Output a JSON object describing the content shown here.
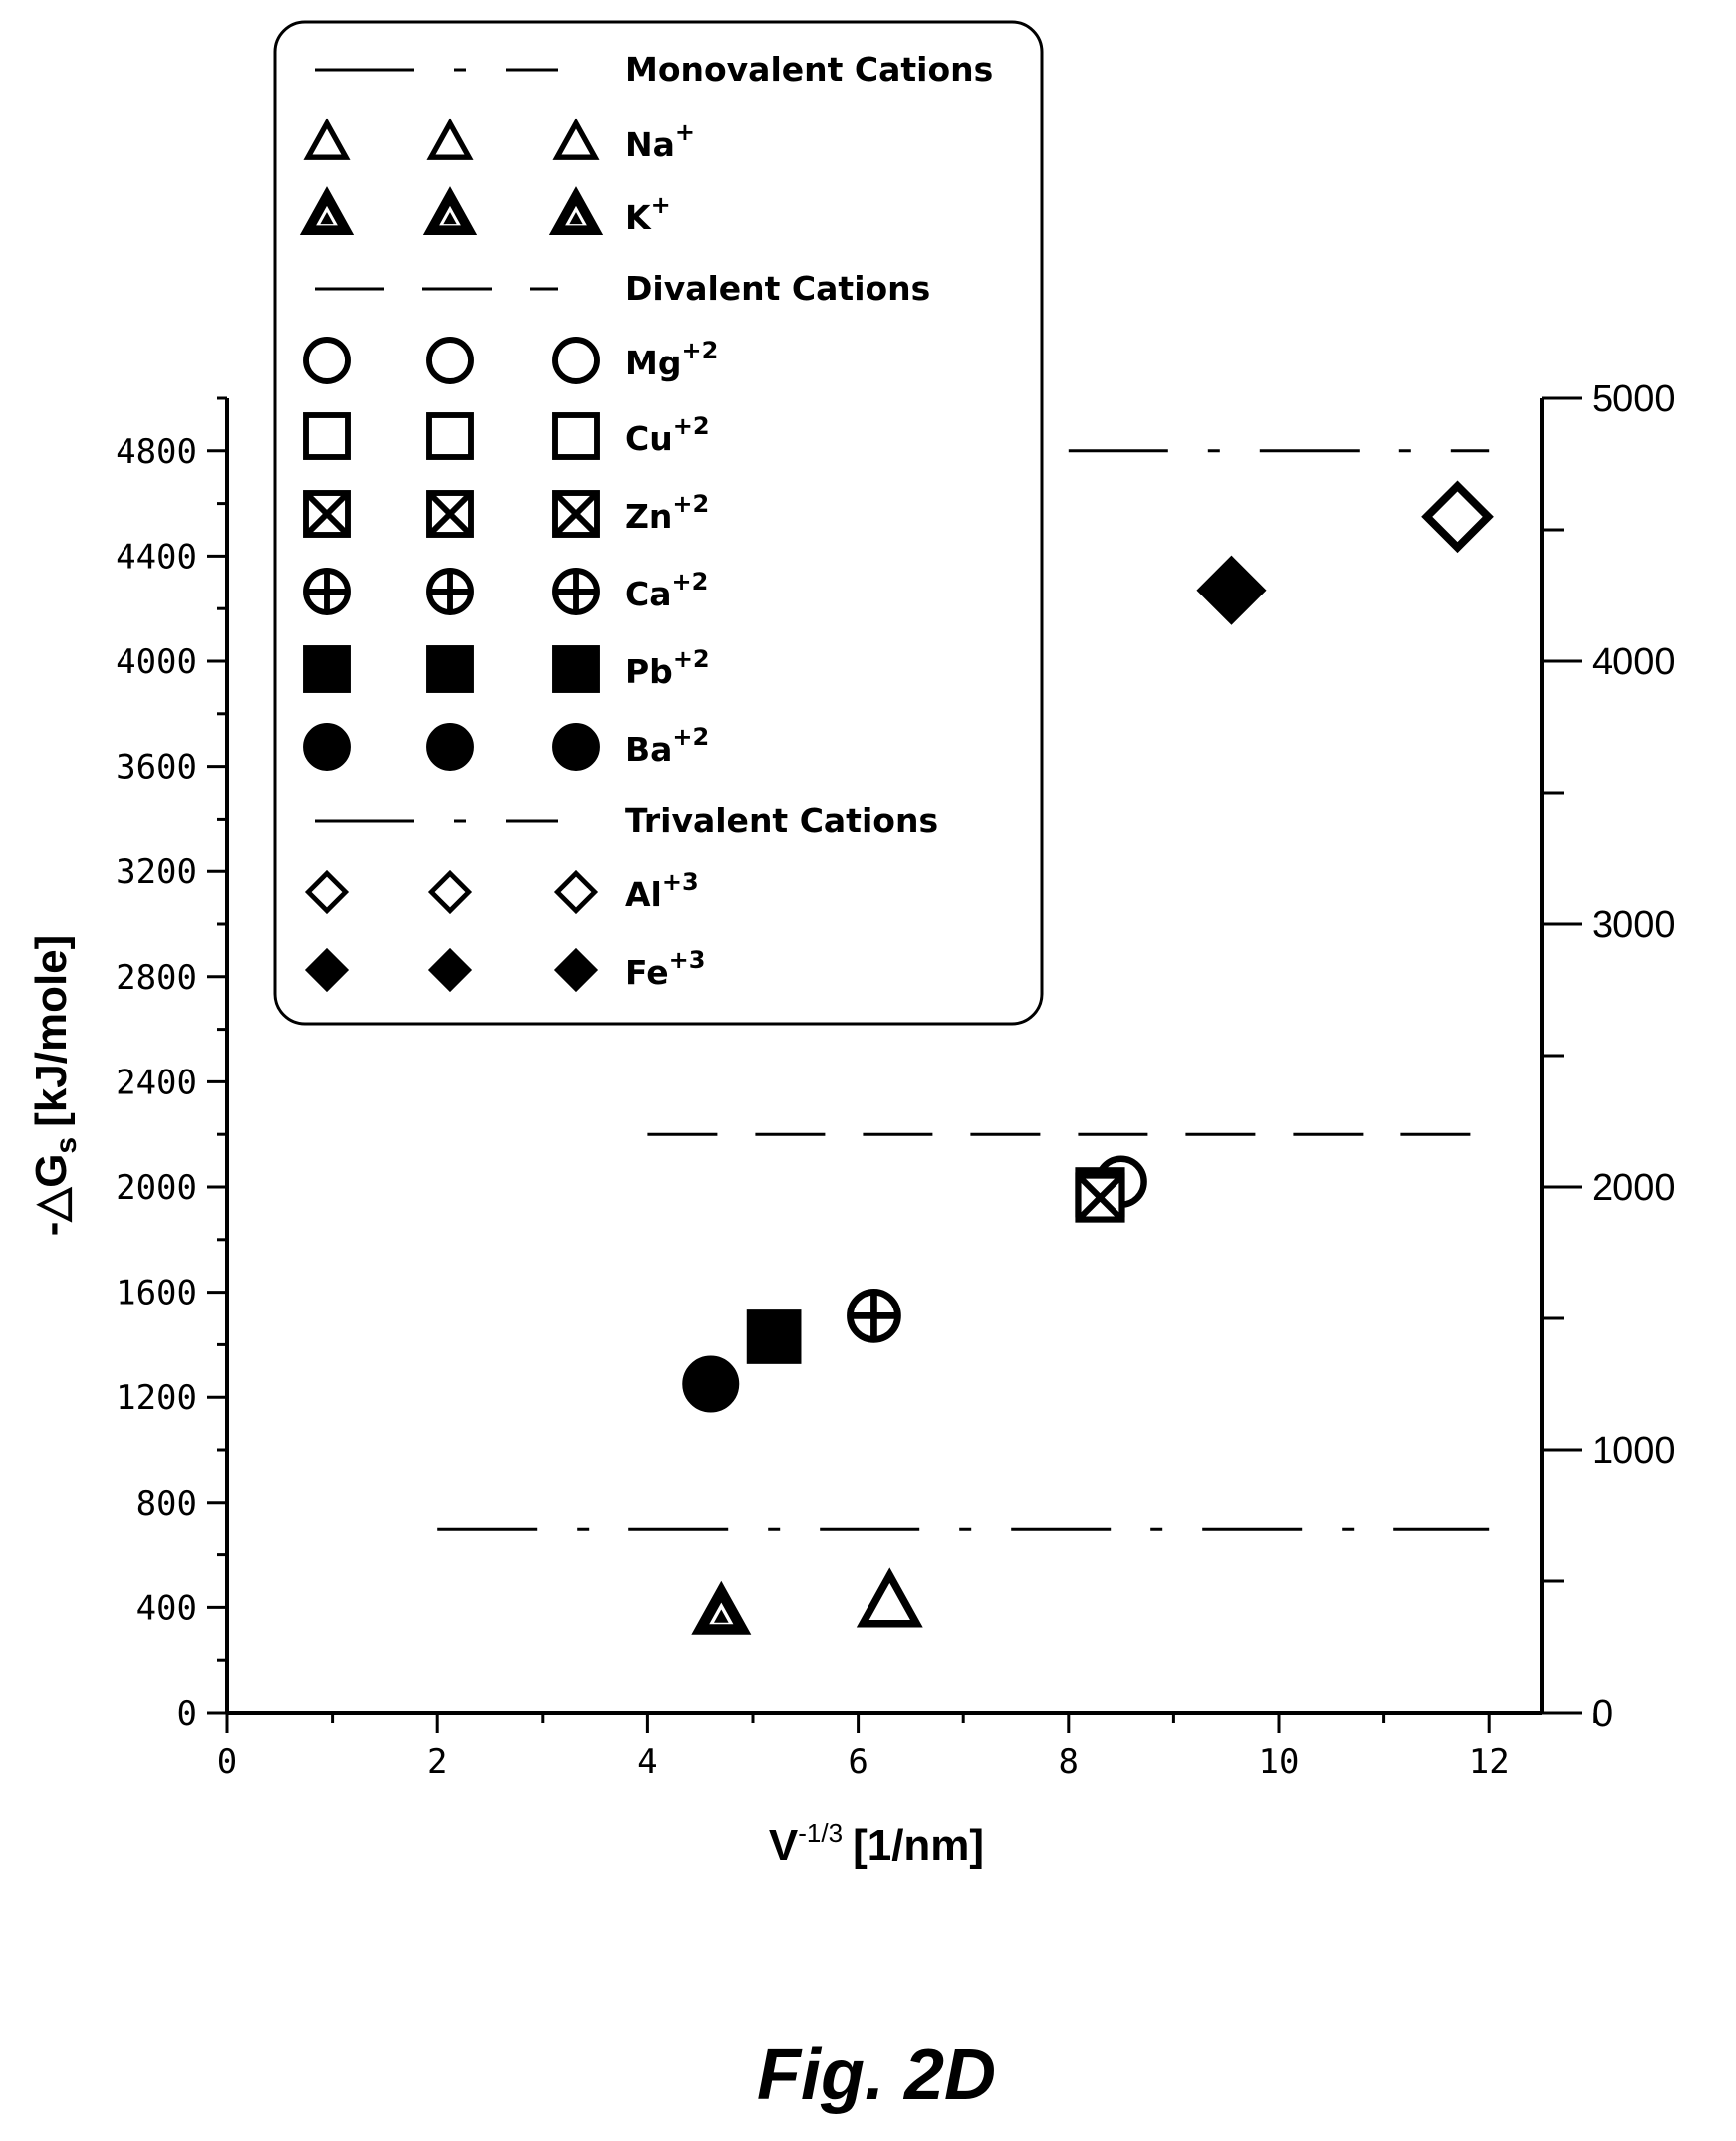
{
  "chart_data": {
    "type": "scatter",
    "title": "",
    "caption": "Fig. 2D",
    "xlabel": "V",
    "xlabel_superscript": "-1/3",
    "xlabel_unit": "[1/nm]",
    "ylabel": "-△G",
    "ylabel_subscript": "s",
    "ylabel_unit": "[kJ/mole]",
    "xlim": [
      0,
      12.5
    ],
    "ylim_left": [
      0,
      5000
    ],
    "ylim_right": [
      0,
      5000
    ],
    "x_ticks": [
      "0",
      "2",
      "4",
      "6",
      "8",
      "10",
      "12"
    ],
    "y_ticks_left": [
      "0",
      "400",
      "800",
      "1200",
      "1600",
      "2000",
      "2400",
      "2800",
      "3200",
      "3600",
      "4000",
      "4400",
      "4800"
    ],
    "y_ticks_right": [
      "0",
      "1000",
      "2000",
      "3000",
      "4000",
      "5000"
    ],
    "grid": false,
    "legend_placement": "top-left",
    "series": [
      {
        "name": "Na",
        "sup": "+",
        "marker": "triangle-open",
        "points": [
          [
            6.3,
            420
          ]
        ]
      },
      {
        "name": "K",
        "sup": "+",
        "marker": "triangle-filled",
        "points": [
          [
            4.7,
            380
          ]
        ]
      },
      {
        "name": "Mg",
        "sup": "+2",
        "marker": "circle-open",
        "points": [
          [
            8.5,
            2020
          ]
        ]
      },
      {
        "name": "Cu",
        "sup": "+2",
        "marker": "square-open",
        "points": [
          [
            8.3,
            1980
          ]
        ]
      },
      {
        "name": "Zn",
        "sup": "+2",
        "marker": "square-x",
        "points": [
          [
            8.3,
            1960
          ]
        ]
      },
      {
        "name": "Ca",
        "sup": "+2",
        "marker": "circle-plus",
        "points": [
          [
            6.15,
            1510
          ]
        ]
      },
      {
        "name": "Pb",
        "sup": "+2",
        "marker": "square-filled",
        "points": [
          [
            5.2,
            1430
          ]
        ]
      },
      {
        "name": "Ba",
        "sup": "+2",
        "marker": "circle-filled",
        "points": [
          [
            4.6,
            1250
          ]
        ]
      },
      {
        "name": "Al",
        "sup": "+3",
        "marker": "diamond-open",
        "points": [
          [
            11.7,
            4550
          ]
        ]
      },
      {
        "name": "Fe",
        "sup": "+3",
        "marker": "diamond-filled",
        "points": [
          [
            9.55,
            4270
          ]
        ]
      }
    ],
    "reference_lines": [
      {
        "name": "Monovalent Cations",
        "dash": "long-dash-dot",
        "x": [
          2,
          12
        ],
        "y": 700
      },
      {
        "name": "Divalent Cations",
        "dash": "dash",
        "x": [
          4,
          12
        ],
        "y": 2200
      },
      {
        "name": "Trivalent Cations",
        "dash": "long-dash-dot",
        "x": [
          8,
          12
        ],
        "y": 4800
      }
    ],
    "legend": [
      {
        "kind": "line",
        "label": "Monovalent Cations",
        "dash": "long-dash-dot"
      },
      {
        "kind": "marker",
        "marker": "triangle-open",
        "label": "Na",
        "sup": "+"
      },
      {
        "kind": "marker",
        "marker": "triangle-filled",
        "label": "K",
        "sup": "+"
      },
      {
        "kind": "line",
        "label": "Divalent Cations",
        "dash": "dash"
      },
      {
        "kind": "marker",
        "marker": "circle-open",
        "label": "Mg",
        "sup": "+2"
      },
      {
        "kind": "marker",
        "marker": "square-open",
        "label": "Cu",
        "sup": "+2"
      },
      {
        "kind": "marker",
        "marker": "square-x",
        "label": "Zn",
        "sup": "+2"
      },
      {
        "kind": "marker",
        "marker": "circle-plus",
        "label": "Ca",
        "sup": "+2"
      },
      {
        "kind": "marker",
        "marker": "square-filled",
        "label": "Pb",
        "sup": "+2"
      },
      {
        "kind": "marker",
        "marker": "circle-filled",
        "label": "Ba",
        "sup": "+2"
      },
      {
        "kind": "line",
        "label": "Trivalent Cations",
        "dash": "long-dash-dot"
      },
      {
        "kind": "marker",
        "marker": "diamond-open",
        "label": "Al",
        "sup": "+3"
      },
      {
        "kind": "marker",
        "marker": "diamond-filled",
        "label": "Fe",
        "sup": "+3"
      }
    ]
  }
}
